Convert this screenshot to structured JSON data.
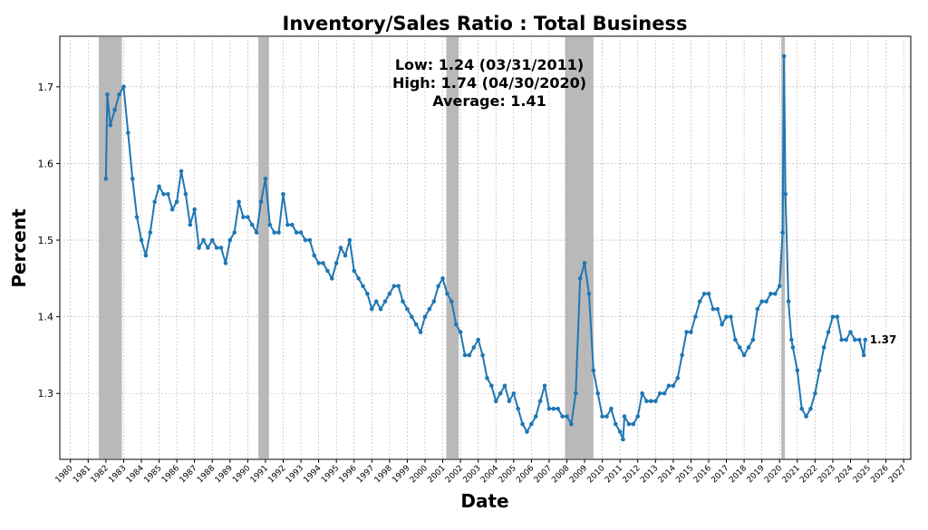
{
  "chart_data": {
    "type": "line",
    "title": "Inventory/Sales Ratio : Total Business",
    "x_label": "Date",
    "y_label": "Percent",
    "annotations": [
      "Low: 1.24 (03/31/2011)",
      "High: 1.74 (04/30/2020)",
      "Average: 1.41"
    ],
    "end_label": "1.37",
    "color": "#1f77b4",
    "grid": true,
    "xlim": [
      1979.4,
      2027.4
    ],
    "ylim": [
      1.214,
      1.766
    ],
    "xticks": [
      1980,
      1981,
      1982,
      1983,
      1984,
      1985,
      1986,
      1987,
      1988,
      1989,
      1990,
      1991,
      1992,
      1993,
      1994,
      1995,
      1996,
      1997,
      1998,
      1999,
      2000,
      2001,
      2002,
      2003,
      2004,
      2005,
      2006,
      2007,
      2008,
      2009,
      2010,
      2011,
      2012,
      2013,
      2014,
      2015,
      2016,
      2017,
      2018,
      2019,
      2020,
      2021,
      2022,
      2023,
      2024,
      2025,
      2026,
      2027
    ],
    "yticks": [
      1.3,
      1.4,
      1.5,
      1.6,
      1.7
    ],
    "shaded_ranges": [
      [
        1981.6,
        1982.9
      ],
      [
        1990.6,
        1991.2
      ],
      [
        2001.2,
        2001.9
      ],
      [
        2007.9,
        2009.5
      ],
      [
        2020.1,
        2020.3
      ]
    ],
    "x": [
      1982.0,
      1982.08,
      1982.25,
      1982.5,
      1982.75,
      1983.0,
      1983.25,
      1983.5,
      1983.75,
      1984.0,
      1984.25,
      1984.5,
      1984.75,
      1985.0,
      1985.25,
      1985.5,
      1985.75,
      1986.0,
      1986.25,
      1986.5,
      1986.75,
      1987.0,
      1987.25,
      1987.5,
      1987.75,
      1988.0,
      1988.25,
      1988.5,
      1988.75,
      1989.0,
      1989.25,
      1989.5,
      1989.75,
      1990.0,
      1990.25,
      1990.5,
      1990.75,
      1991.0,
      1991.25,
      1991.5,
      1991.75,
      1992.0,
      1992.25,
      1992.5,
      1992.75,
      1993.0,
      1993.25,
      1993.5,
      1993.75,
      1994.0,
      1994.25,
      1994.5,
      1994.75,
      1995.0,
      1995.25,
      1995.5,
      1995.75,
      1996.0,
      1996.25,
      1996.5,
      1996.75,
      1997.0,
      1997.25,
      1997.5,
      1997.75,
      1998.0,
      1998.25,
      1998.5,
      1998.75,
      1999.0,
      1999.25,
      1999.5,
      1999.75,
      2000.0,
      2000.25,
      2000.5,
      2000.75,
      2001.0,
      2001.25,
      2001.5,
      2001.75,
      2002.0,
      2002.25,
      2002.5,
      2002.75,
      2003.0,
      2003.25,
      2003.5,
      2003.75,
      2004.0,
      2004.25,
      2004.5,
      2004.75,
      2005.0,
      2005.25,
      2005.5,
      2005.75,
      2006.0,
      2006.25,
      2006.5,
      2006.75,
      2007.0,
      2007.25,
      2007.5,
      2007.75,
      2008.0,
      2008.25,
      2008.5,
      2008.75,
      2009.0,
      2009.25,
      2009.5,
      2009.75,
      2010.0,
      2010.25,
      2010.5,
      2010.75,
      2011.0,
      2011.17,
      2011.25,
      2011.5,
      2011.75,
      2012.0,
      2012.25,
      2012.5,
      2012.75,
      2013.0,
      2013.25,
      2013.5,
      2013.75,
      2014.0,
      2014.25,
      2014.5,
      2014.75,
      2015.0,
      2015.25,
      2015.5,
      2015.75,
      2016.0,
      2016.25,
      2016.5,
      2016.75,
      2017.0,
      2017.25,
      2017.5,
      2017.75,
      2018.0,
      2018.25,
      2018.5,
      2018.75,
      2019.0,
      2019.25,
      2019.5,
      2019.75,
      2020.0,
      2020.17,
      2020.25,
      2020.33,
      2020.5,
      2020.67,
      2020.75,
      2021.0,
      2021.25,
      2021.5,
      2021.75,
      2022.0,
      2022.25,
      2022.5,
      2022.75,
      2023.0,
      2023.25,
      2023.5,
      2023.75,
      2024.0,
      2024.25,
      2024.5,
      2024.75,
      2024.83
    ],
    "values": [
      1.58,
      1.69,
      1.65,
      1.67,
      1.69,
      1.7,
      1.64,
      1.58,
      1.53,
      1.5,
      1.48,
      1.51,
      1.55,
      1.57,
      1.56,
      1.56,
      1.54,
      1.55,
      1.59,
      1.56,
      1.52,
      1.54,
      1.49,
      1.5,
      1.49,
      1.5,
      1.49,
      1.49,
      1.47,
      1.5,
      1.51,
      1.55,
      1.53,
      1.53,
      1.52,
      1.51,
      1.55,
      1.58,
      1.52,
      1.51,
      1.51,
      1.56,
      1.52,
      1.52,
      1.51,
      1.51,
      1.5,
      1.5,
      1.48,
      1.47,
      1.47,
      1.46,
      1.45,
      1.47,
      1.49,
      1.48,
      1.5,
      1.46,
      1.45,
      1.44,
      1.43,
      1.41,
      1.42,
      1.41,
      1.42,
      1.43,
      1.44,
      1.44,
      1.42,
      1.41,
      1.4,
      1.39,
      1.38,
      1.4,
      1.41,
      1.42,
      1.44,
      1.45,
      1.43,
      1.42,
      1.39,
      1.38,
      1.35,
      1.35,
      1.36,
      1.37,
      1.35,
      1.32,
      1.31,
      1.29,
      1.3,
      1.31,
      1.29,
      1.3,
      1.28,
      1.26,
      1.25,
      1.26,
      1.27,
      1.29,
      1.31,
      1.28,
      1.28,
      1.28,
      1.27,
      1.27,
      1.26,
      1.3,
      1.45,
      1.47,
      1.43,
      1.33,
      1.3,
      1.27,
      1.27,
      1.28,
      1.26,
      1.25,
      1.24,
      1.27,
      1.26,
      1.26,
      1.27,
      1.3,
      1.29,
      1.29,
      1.29,
      1.3,
      1.3,
      1.31,
      1.31,
      1.32,
      1.35,
      1.38,
      1.38,
      1.4,
      1.42,
      1.43,
      1.43,
      1.41,
      1.41,
      1.39,
      1.4,
      1.4,
      1.37,
      1.36,
      1.35,
      1.36,
      1.37,
      1.41,
      1.42,
      1.42,
      1.43,
      1.43,
      1.44,
      1.51,
      1.74,
      1.56,
      1.42,
      1.37,
      1.36,
      1.33,
      1.28,
      1.27,
      1.28,
      1.3,
      1.33,
      1.36,
      1.38,
      1.4,
      1.4,
      1.37,
      1.37,
      1.38,
      1.37,
      1.37,
      1.35,
      1.37
    ]
  }
}
